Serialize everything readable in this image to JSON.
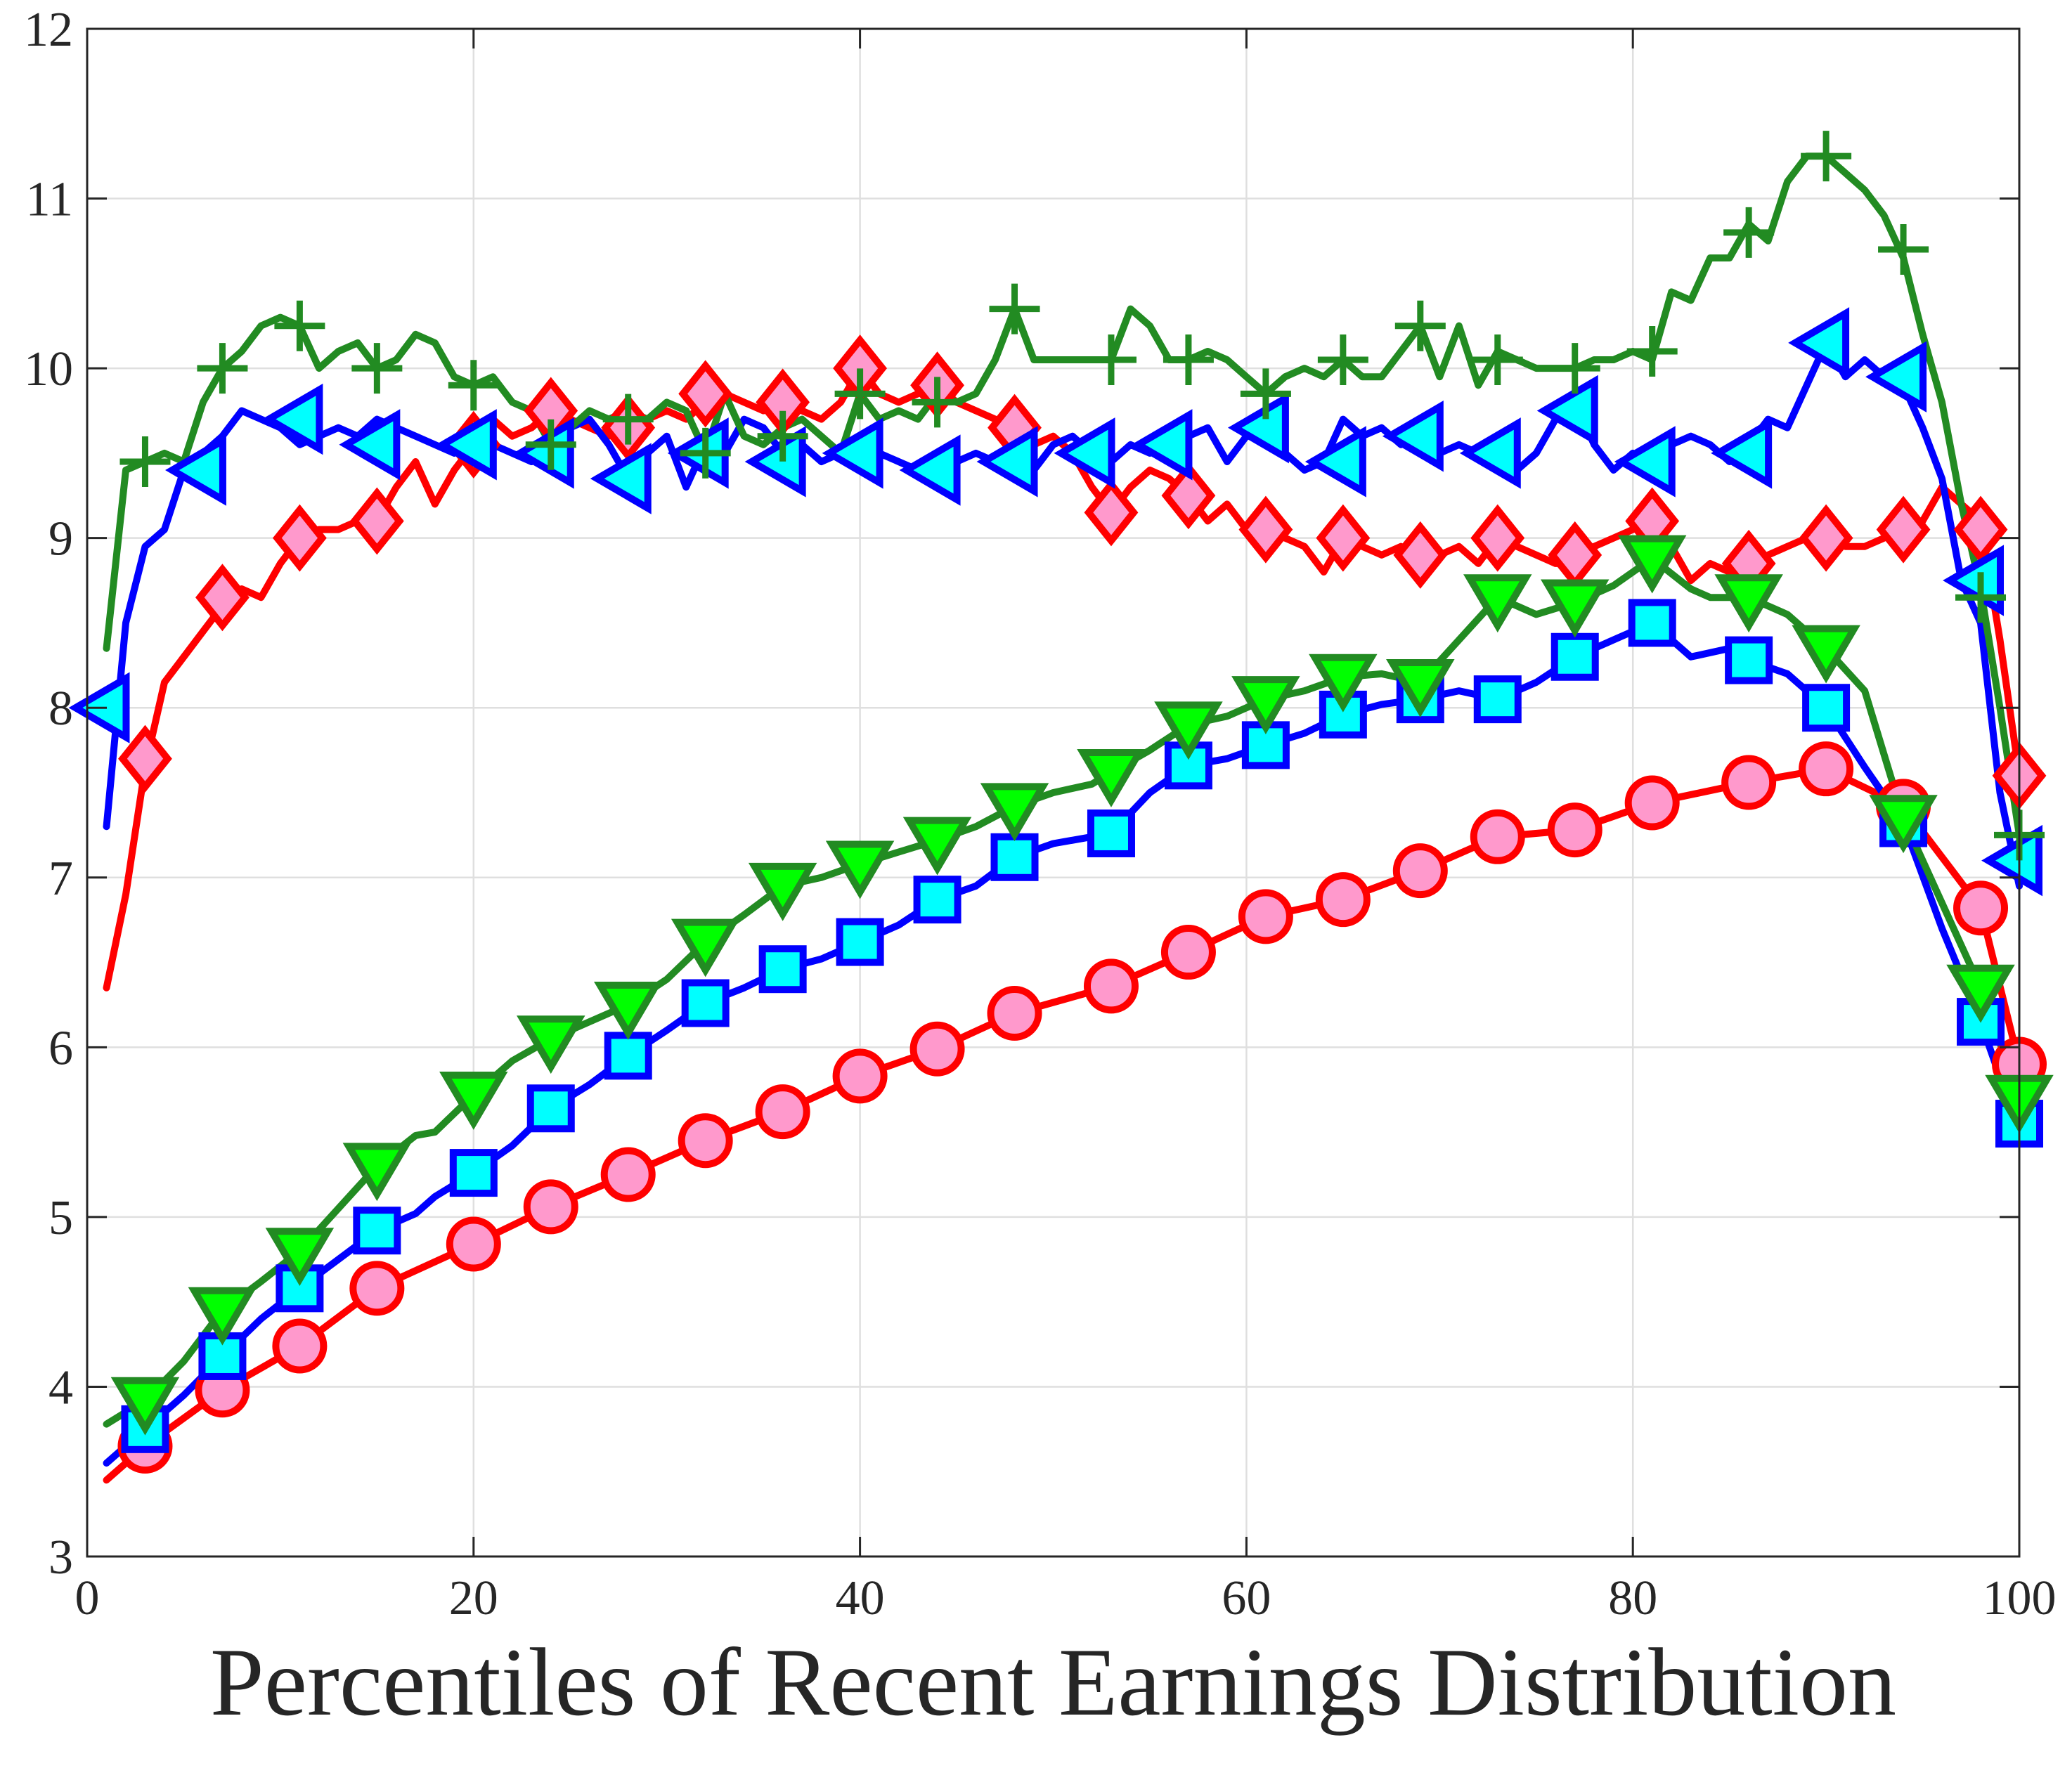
{
  "chart_data": {
    "type": "line",
    "title": "",
    "xlabel": "Percentiles of Recent Earnings Distribution",
    "ylabel": "",
    "xlim": [
      0,
      100
    ],
    "ylim": [
      3,
      12
    ],
    "xticks": [
      0,
      20,
      40,
      60,
      80,
      100
    ],
    "yticks": [
      3,
      4,
      5,
      6,
      7,
      8,
      9,
      10,
      11,
      12
    ],
    "grid": true,
    "legend": "none",
    "series": [
      {
        "color": "#ff0000",
        "marker": "diamond",
        "marker_fill": "#ff99cc",
        "x": [
          1,
          2,
          3,
          4,
          5,
          6,
          7,
          8,
          9,
          10,
          11,
          12,
          13,
          14,
          15,
          16,
          17,
          18,
          19,
          20,
          21,
          22,
          23,
          24,
          25,
          26,
          27,
          28,
          29,
          30,
          31,
          32,
          33,
          34,
          35,
          36,
          37,
          38,
          39,
          40,
          41,
          42,
          43,
          44,
          45,
          46,
          47,
          48,
          49,
          50,
          51,
          52,
          53,
          54,
          55,
          56,
          57,
          58,
          59,
          60,
          61,
          62,
          63,
          64,
          65,
          66,
          67,
          68,
          69,
          70,
          71,
          72,
          73,
          74,
          75,
          76,
          77,
          78,
          79,
          80,
          81,
          82,
          83,
          84,
          85,
          86,
          87,
          88,
          89,
          90,
          91,
          92,
          93,
          94,
          95,
          96,
          97,
          98,
          99,
          100
        ],
        "y": [
          6.35,
          6.9,
          7.65,
          8.15,
          8.3,
          8.45,
          8.6,
          8.7,
          8.65,
          8.85,
          9.0,
          9.05,
          9.05,
          9.1,
          9.1,
          9.3,
          9.45,
          9.2,
          9.4,
          9.55,
          9.7,
          9.6,
          9.65,
          9.75,
          9.7,
          9.65,
          9.6,
          9.65,
          9.7,
          9.75,
          9.7,
          9.8,
          9.85,
          9.8,
          9.75,
          9.8,
          9.75,
          9.7,
          9.8,
          10.0,
          9.85,
          9.8,
          9.85,
          9.9,
          9.8,
          9.75,
          9.7,
          9.65,
          9.55,
          9.6,
          9.5,
          9.3,
          9.15,
          9.3,
          9.4,
          9.35,
          9.25,
          9.1,
          9.2,
          9.05,
          9.05,
          9.0,
          8.95,
          8.8,
          9.0,
          8.95,
          8.9,
          8.95,
          8.85,
          8.9,
          8.95,
          8.85,
          9.0,
          8.95,
          8.9,
          8.85,
          8.85,
          8.95,
          9.0,
          9.05,
          9.1,
          8.95,
          8.75,
          8.85,
          8.8,
          8.85,
          8.9,
          8.95,
          9.0,
          9.0,
          8.95,
          8.95,
          9.0,
          9.05,
          9.1,
          9.3,
          9.2,
          9.1,
          8.4,
          7.6
        ],
        "marker_x": [
          3,
          7,
          11,
          15,
          20,
          24,
          28,
          32,
          36,
          40,
          44,
          48,
          53,
          57,
          61,
          65,
          69,
          73,
          77,
          81,
          86,
          90,
          94,
          98,
          100
        ],
        "marker_y": [
          7.7,
          8.65,
          9.0,
          9.1,
          9.55,
          9.75,
          9.65,
          9.85,
          9.8,
          10.0,
          9.9,
          9.65,
          9.15,
          9.25,
          9.05,
          9.0,
          8.9,
          9.0,
          8.9,
          9.1,
          8.85,
          9.0,
          9.05,
          9.05,
          7.6
        ]
      },
      {
        "color": "#0000ff",
        "marker": "triangle-left",
        "marker_fill": "#00ffff",
        "x": [
          1,
          2,
          3,
          4,
          5,
          6,
          7,
          8,
          9,
          10,
          11,
          12,
          13,
          14,
          15,
          16,
          17,
          18,
          19,
          20,
          21,
          22,
          23,
          24,
          25,
          26,
          27,
          28,
          29,
          30,
          31,
          32,
          33,
          34,
          35,
          36,
          37,
          38,
          39,
          40,
          41,
          42,
          43,
          44,
          45,
          46,
          47,
          48,
          49,
          50,
          51,
          52,
          53,
          54,
          55,
          56,
          57,
          58,
          59,
          60,
          61,
          62,
          63,
          64,
          65,
          66,
          67,
          68,
          69,
          70,
          71,
          72,
          73,
          74,
          75,
          76,
          77,
          78,
          79,
          80,
          81,
          82,
          83,
          84,
          85,
          86,
          87,
          88,
          89,
          90,
          91,
          92,
          93,
          94,
          95,
          96,
          97,
          98,
          99,
          100
        ],
        "y": [
          7.3,
          8.5,
          8.95,
          9.05,
          9.4,
          9.5,
          9.6,
          9.75,
          9.7,
          9.65,
          9.55,
          9.6,
          9.65,
          9.6,
          9.7,
          9.65,
          9.6,
          9.55,
          9.5,
          9.6,
          9.55,
          9.5,
          9.45,
          9.6,
          9.65,
          9.7,
          9.55,
          9.35,
          9.5,
          9.6,
          9.3,
          9.55,
          9.5,
          9.7,
          9.65,
          9.5,
          9.55,
          9.45,
          9.5,
          9.45,
          9.5,
          9.45,
          9.4,
          9.35,
          9.45,
          9.5,
          9.45,
          9.35,
          9.4,
          9.55,
          9.6,
          9.5,
          9.45,
          9.55,
          9.5,
          9.55,
          9.6,
          9.65,
          9.45,
          9.6,
          9.6,
          9.5,
          9.4,
          9.45,
          9.7,
          9.6,
          9.65,
          9.55,
          9.6,
          9.5,
          9.55,
          9.5,
          9.45,
          9.4,
          9.5,
          9.7,
          9.8,
          9.55,
          9.4,
          9.5,
          9.45,
          9.55,
          9.6,
          9.55,
          9.45,
          9.55,
          9.7,
          9.65,
          9.9,
          10.15,
          9.95,
          10.05,
          9.95,
          9.9,
          9.65,
          9.35,
          8.75,
          8.5,
          7.5,
          6.95
        ],
        "marker_x": [
          1,
          6,
          11,
          15,
          20,
          24,
          28,
          32,
          36,
          40,
          44,
          48,
          52,
          56,
          61,
          65,
          69,
          73,
          77,
          81,
          86,
          90,
          94,
          98,
          100
        ],
        "marker_y": [
          8.0,
          9.4,
          9.7,
          9.55,
          9.55,
          9.5,
          9.35,
          9.5,
          9.45,
          9.5,
          9.4,
          9.45,
          9.5,
          9.55,
          9.65,
          9.45,
          9.6,
          9.5,
          9.75,
          9.45,
          9.5,
          10.15,
          9.95,
          8.75,
          7.1
        ]
      },
      {
        "color": "#228b22",
        "marker": "plus",
        "marker_fill": "none",
        "x": [
          1,
          2,
          3,
          4,
          5,
          6,
          7,
          8,
          9,
          10,
          11,
          12,
          13,
          14,
          15,
          16,
          17,
          18,
          19,
          20,
          21,
          22,
          23,
          24,
          25,
          26,
          27,
          28,
          29,
          30,
          31,
          32,
          33,
          34,
          35,
          36,
          37,
          38,
          39,
          40,
          41,
          42,
          43,
          44,
          45,
          46,
          47,
          48,
          49,
          50,
          51,
          52,
          53,
          54,
          55,
          56,
          57,
          58,
          59,
          60,
          61,
          62,
          63,
          64,
          65,
          66,
          67,
          68,
          69,
          70,
          71,
          72,
          73,
          74,
          75,
          76,
          77,
          78,
          79,
          80,
          81,
          82,
          83,
          84,
          85,
          86,
          87,
          88,
          89,
          90,
          91,
          92,
          93,
          94,
          95,
          96,
          97,
          98,
          99,
          100
        ],
        "y": [
          8.35,
          9.4,
          9.45,
          9.5,
          9.45,
          9.8,
          10.0,
          10.1,
          10.25,
          10.3,
          10.25,
          10.0,
          10.1,
          10.15,
          10.0,
          10.05,
          10.2,
          10.15,
          9.95,
          9.9,
          9.95,
          9.8,
          9.75,
          9.55,
          9.65,
          9.75,
          9.7,
          9.75,
          9.7,
          9.8,
          9.75,
          9.5,
          9.85,
          9.6,
          9.55,
          9.65,
          9.7,
          9.6,
          9.5,
          9.85,
          9.7,
          9.75,
          9.7,
          9.85,
          9.8,
          9.85,
          10.05,
          10.35,
          10.05,
          10.05,
          10.05,
          10.05,
          10.05,
          10.35,
          10.25,
          10.05,
          10.05,
          10.1,
          10.05,
          9.95,
          9.85,
          9.95,
          10.0,
          9.95,
          10.05,
          9.95,
          9.95,
          10.1,
          10.25,
          9.95,
          10.25,
          9.9,
          10.1,
          10.05,
          10.0,
          10.0,
          10.0,
          10.05,
          10.05,
          10.1,
          10.05,
          10.45,
          10.4,
          10.65,
          10.65,
          10.85,
          10.75,
          11.1,
          11.25,
          11.25,
          11.15,
          11.05,
          10.9,
          10.65,
          10.2,
          9.8,
          9.2,
          8.7,
          8.0,
          7.25
        ],
        "marker_x": [
          3,
          7,
          11,
          15,
          20,
          24,
          28,
          32,
          36,
          40,
          44,
          48,
          53,
          57,
          61,
          65,
          69,
          73,
          77,
          81,
          86,
          90,
          94,
          98,
          100
        ],
        "marker_y": [
          9.45,
          10.0,
          10.25,
          10.0,
          9.9,
          9.55,
          9.7,
          9.5,
          9.6,
          9.85,
          9.8,
          10.35,
          10.05,
          10.05,
          9.85,
          10.05,
          10.25,
          10.05,
          10.0,
          10.1,
          10.8,
          11.25,
          10.7,
          8.65,
          7.25
        ]
      },
      {
        "color": "#ff0000",
        "marker": "circle",
        "marker_fill": "#ff99cc",
        "x": [
          1,
          3,
          7,
          11,
          15,
          20,
          24,
          28,
          32,
          36,
          40,
          44,
          48,
          53,
          57,
          61,
          65,
          69,
          73,
          77,
          81,
          86,
          90,
          94,
          98,
          100
        ],
        "y": [
          3.45,
          3.65,
          3.98,
          4.24,
          4.58,
          4.84,
          5.06,
          5.25,
          5.45,
          5.62,
          5.83,
          5.99,
          6.2,
          6.36,
          6.56,
          6.77,
          6.87,
          7.04,
          7.24,
          7.28,
          7.44,
          7.56,
          7.64,
          7.42,
          6.82,
          5.9
        ],
        "marker_x": [
          3,
          7,
          11,
          15,
          20,
          24,
          28,
          32,
          36,
          40,
          44,
          48,
          53,
          57,
          61,
          65,
          69,
          73,
          77,
          81,
          86,
          90,
          94,
          98,
          100
        ],
        "marker_y": [
          3.65,
          3.98,
          4.24,
          4.58,
          4.84,
          5.06,
          5.25,
          5.45,
          5.62,
          5.83,
          5.99,
          6.2,
          6.36,
          6.56,
          6.77,
          6.87,
          7.04,
          7.24,
          7.28,
          7.44,
          7.56,
          7.64,
          7.42,
          6.82,
          5.9
        ]
      },
      {
        "color": "#0000ff",
        "marker": "square",
        "marker_fill": "#00ffff",
        "x": [
          1,
          3,
          5,
          7,
          9,
          11,
          13,
          15,
          17,
          18,
          20,
          22,
          24,
          26,
          28,
          30,
          32,
          34,
          36,
          38,
          40,
          42,
          44,
          46,
          48,
          50,
          53,
          55,
          57,
          59,
          61,
          63,
          65,
          67,
          69,
          71,
          73,
          75,
          77,
          79,
          81,
          83,
          85,
          86,
          88,
          90,
          92,
          94,
          96,
          98,
          100
        ],
        "y": [
          3.55,
          3.75,
          3.95,
          4.18,
          4.4,
          4.58,
          4.75,
          4.92,
          5.02,
          5.12,
          5.26,
          5.42,
          5.64,
          5.78,
          5.95,
          6.1,
          6.26,
          6.35,
          6.46,
          6.52,
          6.62,
          6.72,
          6.87,
          6.95,
          7.12,
          7.2,
          7.26,
          7.5,
          7.66,
          7.7,
          7.78,
          7.85,
          7.96,
          8.02,
          8.05,
          8.1,
          8.05,
          8.15,
          8.3,
          8.4,
          8.5,
          8.3,
          8.35,
          8.28,
          8.2,
          8.0,
          7.65,
          7.32,
          6.7,
          6.15,
          5.5
        ],
        "marker_x": [
          3,
          7,
          11,
          15,
          20,
          24,
          28,
          32,
          36,
          40,
          44,
          48,
          53,
          57,
          61,
          65,
          69,
          73,
          77,
          81,
          86,
          90,
          94,
          98,
          100
        ],
        "marker_y": [
          3.75,
          4.18,
          4.58,
          4.92,
          5.26,
          5.64,
          5.95,
          6.26,
          6.46,
          6.62,
          6.87,
          7.12,
          7.26,
          7.66,
          7.78,
          7.96,
          8.05,
          8.05,
          8.3,
          8.5,
          8.28,
          8.0,
          7.32,
          6.15,
          5.55
        ]
      },
      {
        "color": "#228b22",
        "marker": "triangle-down",
        "marker_fill": "#00ff00",
        "x": [
          1,
          3,
          5,
          7,
          9,
          11,
          13,
          15,
          17,
          18,
          20,
          22,
          24,
          26,
          28,
          30,
          32,
          34,
          36,
          38,
          40,
          42,
          44,
          46,
          48,
          50,
          52,
          53,
          55,
          57,
          59,
          61,
          63,
          65,
          67,
          69,
          71,
          73,
          75,
          77,
          79,
          81,
          83,
          84,
          86,
          88,
          90,
          92,
          94,
          96,
          98,
          100
        ],
        "y": [
          3.78,
          3.92,
          4.15,
          4.45,
          4.62,
          4.8,
          5.05,
          5.3,
          5.48,
          5.5,
          5.72,
          5.92,
          6.05,
          6.15,
          6.25,
          6.4,
          6.62,
          6.78,
          6.95,
          7.0,
          7.08,
          7.15,
          7.22,
          7.3,
          7.42,
          7.5,
          7.55,
          7.62,
          7.75,
          7.9,
          7.95,
          8.05,
          8.1,
          8.18,
          8.2,
          8.15,
          8.4,
          8.65,
          8.55,
          8.62,
          8.72,
          8.88,
          8.7,
          8.65,
          8.65,
          8.55,
          8.35,
          8.1,
          7.35,
          6.85,
          6.35,
          5.7
        ],
        "marker_x": [
          3,
          7,
          11,
          15,
          20,
          24,
          28,
          32,
          36,
          40,
          44,
          48,
          53,
          57,
          61,
          65,
          69,
          73,
          77,
          81,
          86,
          90,
          94,
          98,
          100
        ],
        "marker_y": [
          3.92,
          4.45,
          4.8,
          5.3,
          5.72,
          6.05,
          6.25,
          6.62,
          6.95,
          7.08,
          7.22,
          7.42,
          7.62,
          7.9,
          8.05,
          8.18,
          8.15,
          8.65,
          8.62,
          8.88,
          8.65,
          8.35,
          7.35,
          6.35,
          5.7
        ]
      }
    ]
  }
}
